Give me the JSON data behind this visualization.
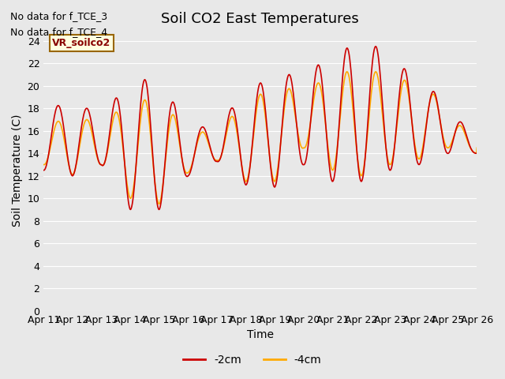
{
  "title": "Soil CO2 East Temperatures",
  "ylabel": "Soil Temperature (C)",
  "xlabel": "Time",
  "no_data_text": [
    "No data for f_TCE_3",
    "No data for f_TCE_4"
  ],
  "legend_box_label": "VR_soilco2",
  "legend_entries": [
    "-2cm",
    "-4cm"
  ],
  "legend_colors": [
    "#cc0000",
    "#ffaa00"
  ],
  "bg_color": "#e8e8e8",
  "plot_bg_color": "#e8e8e8",
  "ylim": [
    0,
    25
  ],
  "yticks": [
    0,
    2,
    4,
    6,
    8,
    10,
    12,
    14,
    16,
    18,
    20,
    22,
    24
  ],
  "xtick_labels": [
    "Apr 11",
    "Apr 12",
    "Apr 13",
    "Apr 14",
    "Apr 15",
    "Apr 16",
    "Apr 17",
    "Apr 18",
    "Apr 19",
    "Apr 20",
    "Apr 21",
    "Apr 22",
    "Apr 23",
    "Apr 24",
    "Apr 25",
    "Apr 26"
  ],
  "num_days": 15,
  "points_per_day": 48,
  "color_2cm": "#cc0000",
  "color_4cm": "#ffaa00",
  "linewidth": 1.2,
  "daily_min_2cm": [
    12.5,
    12.0,
    13.0,
    9.0,
    9.0,
    12.0,
    13.3,
    11.2,
    11.0,
    13.0,
    11.5,
    11.5,
    12.5,
    13.0,
    14.0,
    14.0
  ],
  "daily_max_2cm": [
    18.0,
    18.5,
    17.5,
    20.3,
    20.8,
    16.2,
    16.5,
    19.5,
    21.0,
    21.0,
    22.7,
    24.0,
    23.0,
    20.0,
    19.0,
    14.2
  ],
  "daily_min_4cm": [
    13.0,
    12.1,
    13.0,
    10.0,
    9.5,
    12.3,
    13.4,
    11.5,
    11.5,
    14.5,
    12.5,
    12.0,
    13.0,
    13.5,
    14.5,
    14.0
  ],
  "daily_max_4cm": [
    16.5,
    17.2,
    16.8,
    18.5,
    19.0,
    15.8,
    16.0,
    18.5,
    20.0,
    19.5,
    21.0,
    21.5,
    21.0,
    20.0,
    18.5,
    14.0
  ]
}
